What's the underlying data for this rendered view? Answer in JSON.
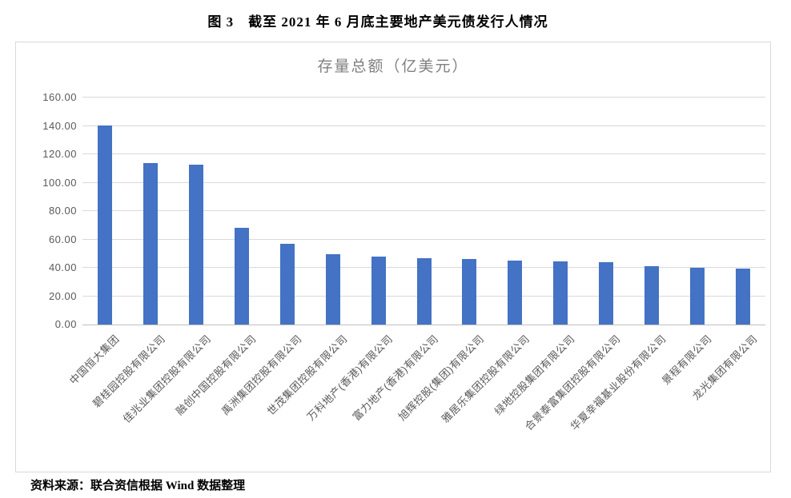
{
  "page": {
    "title": "图 3　截至 2021 年 6 月底主要地产美元债发行人情况",
    "source_note": "资料来源：联合资信根据 Wind 数据整理"
  },
  "chart_data": {
    "type": "bar",
    "title": "存量总额（亿美元）",
    "categories": [
      "中国恒大集团",
      "碧桂园控股有限公司",
      "佳兆业集团控股有限公司",
      "融创中国控股有限公司",
      "禹洲集团控股有限公司",
      "世茂集团控股有限公司",
      "万科地产(香港)有限公司",
      "富力地产(香港)有限公司",
      "旭辉控股(集团)有限公司",
      "雅居乐集团控股有限公司",
      "绿地控股集团有限公司",
      "合景泰富集团控股有限公司",
      "华夏幸福基业股份有限公司",
      "景程有限公司",
      "龙光集团有限公司"
    ],
    "values": [
      140.2,
      113.9,
      112.9,
      68.2,
      57.0,
      49.4,
      48.1,
      47.0,
      46.0,
      44.8,
      44.6,
      44.1,
      41.1,
      39.8,
      39.3
    ],
    "xlabel": "",
    "ylabel": "",
    "ylim": [
      0,
      160
    ],
    "ytick_step": 20,
    "ytick_labels": [
      "0.00",
      "20.00",
      "40.00",
      "60.00",
      "80.00",
      "100.00",
      "120.00",
      "140.00",
      "160.00"
    ],
    "grid": true,
    "legend_position": "none",
    "bar_color": "#4472c4",
    "gridline_color": "#d9d9d9",
    "axis_line_color": "#bfbfbf",
    "tick_label_color": "#595959",
    "title_color": "#808080"
  }
}
